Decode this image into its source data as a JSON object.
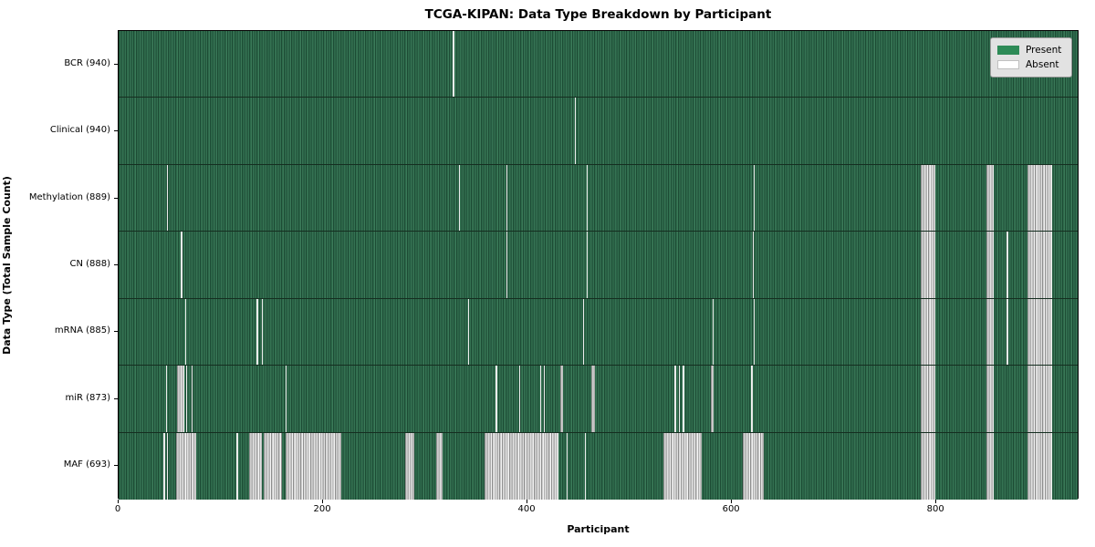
{
  "figure": {
    "title": "TCGA-KIPAN: Data Type Breakdown by Participant",
    "xlabel": "Participant",
    "ylabel": "Data Type (Total Sample Count)"
  },
  "legend": {
    "present_label": "Present",
    "absent_label": "Absent",
    "present_color": "#2e8b57",
    "absent_color": "#ffffff"
  },
  "chart_data": {
    "type": "heatmap",
    "title": "TCGA-KIPAN: Data Type Breakdown by Participant",
    "xlabel": "Participant",
    "ylabel": "Data Type (Total Sample Count)",
    "xlim": [
      0,
      940
    ],
    "x_ticks": [
      0,
      200,
      400,
      600,
      800
    ],
    "n_participants": 940,
    "legend_entries": [
      "Present",
      "Absent"
    ],
    "legend_position": "upper right",
    "colors": {
      "present": "#2e8b57",
      "absent": "#ffffff"
    },
    "rows": [
      {
        "name": "BCR",
        "label": "BCR (940)",
        "total_samples": 940,
        "absent_ranges": [
          [
            327,
            328
          ]
        ]
      },
      {
        "name": "Clinical",
        "label": "Clinical (940)",
        "total_samples": 940,
        "absent_ranges": [
          [
            446,
            447
          ]
        ]
      },
      {
        "name": "Methylation",
        "label": "Methylation (889)",
        "total_samples": 889,
        "absent_ranges": [
          [
            47,
            48
          ],
          [
            333,
            334
          ],
          [
            379,
            380
          ],
          [
            458,
            459
          ],
          [
            621,
            622
          ],
          [
            785,
            799
          ],
          [
            849,
            856
          ],
          [
            889,
            913
          ]
        ]
      },
      {
        "name": "CN",
        "label": "CN (888)",
        "total_samples": 888,
        "absent_ranges": [
          [
            61,
            62
          ],
          [
            379,
            380
          ],
          [
            458,
            459
          ],
          [
            620,
            621
          ],
          [
            785,
            799
          ],
          [
            849,
            856
          ],
          [
            869,
            870
          ],
          [
            889,
            913
          ]
        ]
      },
      {
        "name": "mRNA",
        "label": "mRNA (885)",
        "total_samples": 885,
        "absent_ranges": [
          [
            65,
            66
          ],
          [
            135,
            136
          ],
          [
            140,
            141
          ],
          [
            342,
            343
          ],
          [
            454,
            455
          ],
          [
            581,
            582
          ],
          [
            621,
            622
          ],
          [
            785,
            799
          ],
          [
            849,
            856
          ],
          [
            869,
            870
          ],
          [
            889,
            913
          ]
        ]
      },
      {
        "name": "miR",
        "label": "miR (873)",
        "total_samples": 873,
        "absent_ranges": [
          [
            46,
            47
          ],
          [
            57,
            64
          ],
          [
            66,
            67
          ],
          [
            71,
            72
          ],
          [
            163,
            164
          ],
          [
            369,
            370
          ],
          [
            392,
            393
          ],
          [
            412,
            413
          ],
          [
            416,
            417
          ],
          [
            432,
            435
          ],
          [
            462,
            466
          ],
          [
            544,
            545
          ],
          [
            548,
            549
          ],
          [
            552,
            553
          ],
          [
            579,
            582
          ],
          [
            619,
            620
          ],
          [
            785,
            799
          ],
          [
            849,
            856
          ],
          [
            889,
            913
          ]
        ]
      },
      {
        "name": "MAF",
        "label": "MAF (693)",
        "total_samples": 693,
        "absent_ranges": [
          [
            44,
            45
          ],
          [
            47,
            48
          ],
          [
            56,
            76
          ],
          [
            115,
            117
          ],
          [
            128,
            140
          ],
          [
            142,
            160
          ],
          [
            163,
            218
          ],
          [
            280,
            289
          ],
          [
            311,
            317
          ],
          [
            358,
            430
          ],
          [
            438,
            439
          ],
          [
            456,
            457
          ],
          [
            533,
            570
          ],
          [
            611,
            631
          ],
          [
            785,
            799
          ],
          [
            849,
            856
          ],
          [
            889,
            913
          ]
        ]
      }
    ]
  }
}
